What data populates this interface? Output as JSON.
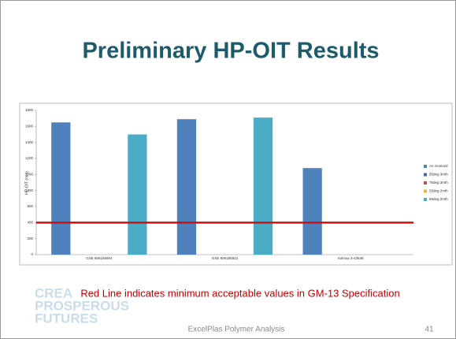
{
  "slide": {
    "title": "Preliminary HP-OIT Results",
    "note": "Red Line indicates minimum acceptable values in GM-13 Specification",
    "watermark": [
      "CREA",
      "PROSPEROUS",
      "FUTURES"
    ],
    "footer": "ExcelPlas Polymer Analysis",
    "page_number": "41"
  },
  "chart_data": {
    "type": "bar",
    "ylabel": "HP-OIT (min)",
    "categories": [
      "GSE 806165904",
      "GSE 806185922",
      "Solmax 3-43536"
    ],
    "series": [
      {
        "name": "As received",
        "color": "#4f81bd",
        "values": [
          1650,
          1690,
          1080
        ]
      },
      {
        "name": "85deg 3mth",
        "color": "#3a6aa8",
        "values": [
          null,
          null,
          null
        ]
      },
      {
        "name": "75deg 3mth",
        "color": "#c0504d",
        "values": [
          null,
          null,
          null
        ]
      },
      {
        "name": "55deg 2mth",
        "color": "#f2b134",
        "values": [
          null,
          null,
          null
        ]
      },
      {
        "name": "85deg 2mth",
        "color": "#4bacc6",
        "values": [
          1500,
          1710,
          null
        ]
      }
    ],
    "ylim": [
      0,
      1800
    ],
    "yticks": [
      0,
      200,
      400,
      600,
      800,
      1000,
      1200,
      1400,
      1600,
      1800
    ],
    "grid": false,
    "legend": "right",
    "reference_line": {
      "value": 400,
      "color": "#d01010"
    }
  }
}
